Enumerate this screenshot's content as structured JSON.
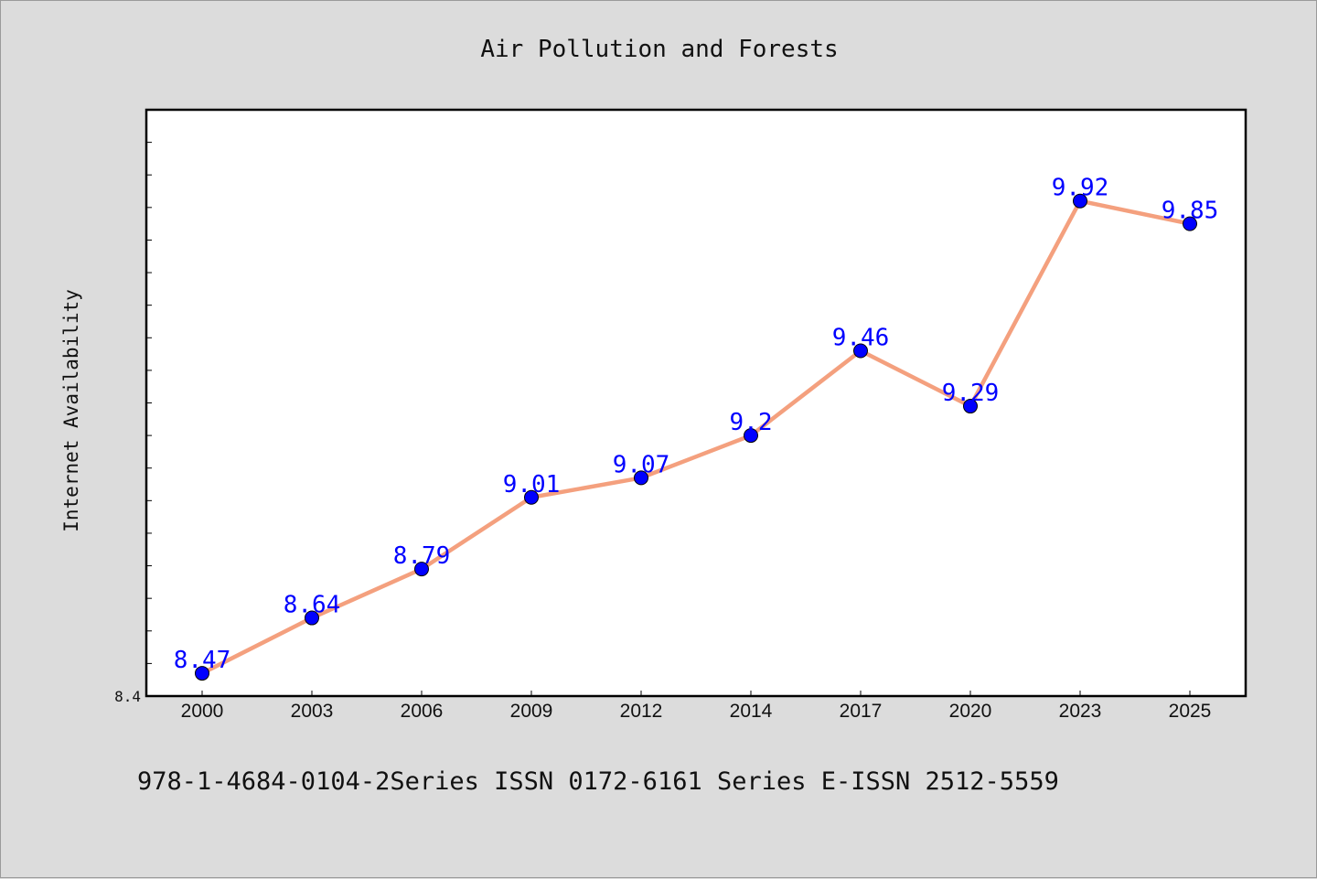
{
  "chart_data": {
    "type": "line",
    "title": "Air Pollution and Forests",
    "xlabel": "",
    "ylabel": "Internet Availability",
    "categories": [
      "2000",
      "2003",
      "2006",
      "2009",
      "2012",
      "2014",
      "2017",
      "2020",
      "2023",
      "2025"
    ],
    "series": [
      {
        "values": [
          8.47,
          8.64,
          8.79,
          9.01,
          9.07,
          9.2,
          9.46,
          9.29,
          9.92,
          9.85
        ],
        "data_labels": [
          "8.47",
          "8.64",
          "8.79",
          "9.01",
          "9.07",
          "9.2",
          "9.46",
          "9.29",
          "9.92",
          "9.85"
        ]
      }
    ],
    "ylim": [
      8.4,
      10.2
    ],
    "ytick_labels": [
      "8.4"
    ],
    "grid": false,
    "legend": "none",
    "line_color": "#f4a07e",
    "marker_color": "#0000ff",
    "label_color": "#0000ff",
    "plot_background": "#ffffff",
    "figure_background": "#dcdcdc"
  },
  "footer": {
    "text": "978-1-4684-0104-2Series ISSN 0172-6161 Series E-ISSN 2512-5559"
  }
}
